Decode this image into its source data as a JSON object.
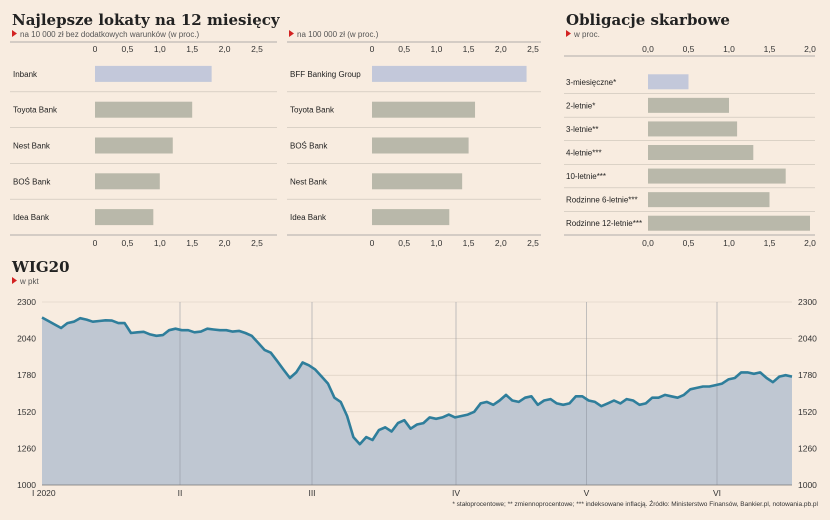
{
  "colors": {
    "background": "#f8ece0",
    "bar": "#b9b8aa",
    "highlight": "#c3c8da",
    "line": "#2f7e9b",
    "area": "#bfc7d2",
    "marker": "#d32222"
  },
  "footnote": "* stałoprocentowe; ** zmiennoprocentowe; *** indeksowane inflacją. Źródło: Ministerstwo Finansów, Bankier.pl, notowania.pb.pl",
  "chart_data": [
    {
      "type": "bar",
      "title": "Najlepsze lokaty na 12 miesięcy",
      "subtitle": "na 10 000 zł bez dodatkowych warunków (w proc.)",
      "categories": [
        "Inbank",
        "Toyota Bank",
        "Nest Bank",
        "BOŚ Bank",
        "Idea Bank"
      ],
      "values": [
        1.8,
        1.5,
        1.2,
        1.0,
        0.9
      ],
      "highlight_index": 0,
      "xlim": [
        0,
        2.5
      ],
      "ticks": [
        "0",
        "0,5",
        "1,0",
        "1,5",
        "2,0",
        "2,5"
      ],
      "orientation": "horizontal"
    },
    {
      "type": "bar",
      "title": "",
      "subtitle": "na 100 000 zł (w proc.)",
      "categories": [
        "BFF Banking Group",
        "Toyota Bank",
        "BOŚ Bank",
        "Nest Bank",
        "Idea Bank"
      ],
      "values": [
        2.4,
        1.6,
        1.5,
        1.4,
        1.2
      ],
      "highlight_index": 0,
      "xlim": [
        0,
        2.5
      ],
      "ticks": [
        "0",
        "0,5",
        "1,0",
        "1,5",
        "2,0",
        "2,5"
      ],
      "orientation": "horizontal"
    },
    {
      "type": "bar",
      "title": "Obligacje skarbowe",
      "subtitle": "w proc.",
      "categories": [
        "3-miesięczne*",
        "2-letnie*",
        "3-letnie**",
        "4-letnie***",
        "10-letnie***",
        "Rodzinne 6-letnie***",
        "Rodzinne 12-letnie***"
      ],
      "values": [
        0.5,
        1.0,
        1.1,
        1.3,
        1.7,
        1.5,
        2.0
      ],
      "highlight_index": 0,
      "xlim": [
        0,
        2.0
      ],
      "ticks": [
        "0,0",
        "0,5",
        "1,0",
        "1,5",
        "2,0"
      ],
      "orientation": "horizontal"
    },
    {
      "type": "area",
      "title": "WIG20",
      "subtitle": "w pkt",
      "ylim": [
        1000,
        2300
      ],
      "y_ticks": [
        1000,
        1260,
        1520,
        1780,
        2040,
        2300
      ],
      "x_labels": [
        "I 2020",
        "II",
        "III",
        "IV",
        "V",
        "VI"
      ],
      "values": [
        2190,
        2165,
        2140,
        2115,
        2150,
        2160,
        2185,
        2175,
        2160,
        2165,
        2170,
        2168,
        2150,
        2150,
        2080,
        2085,
        2088,
        2070,
        2060,
        2065,
        2100,
        2110,
        2100,
        2100,
        2085,
        2090,
        2110,
        2105,
        2100,
        2100,
        2090,
        2095,
        2080,
        2060,
        2010,
        1960,
        1940,
        1880,
        1820,
        1760,
        1800,
        1870,
        1850,
        1820,
        1770,
        1720,
        1620,
        1590,
        1490,
        1340,
        1290,
        1340,
        1320,
        1390,
        1410,
        1380,
        1440,
        1460,
        1400,
        1430,
        1440,
        1480,
        1470,
        1480,
        1500,
        1480,
        1490,
        1500,
        1520,
        1580,
        1590,
        1570,
        1600,
        1640,
        1600,
        1590,
        1620,
        1630,
        1570,
        1600,
        1610,
        1580,
        1570,
        1580,
        1630,
        1630,
        1600,
        1590,
        1560,
        1580,
        1600,
        1580,
        1610,
        1600,
        1570,
        1580,
        1620,
        1620,
        1640,
        1630,
        1620,
        1640,
        1680,
        1690,
        1700,
        1700,
        1710,
        1720,
        1750,
        1760,
        1800,
        1800,
        1790,
        1800,
        1760,
        1730,
        1770,
        1780,
        1770
      ]
    }
  ]
}
